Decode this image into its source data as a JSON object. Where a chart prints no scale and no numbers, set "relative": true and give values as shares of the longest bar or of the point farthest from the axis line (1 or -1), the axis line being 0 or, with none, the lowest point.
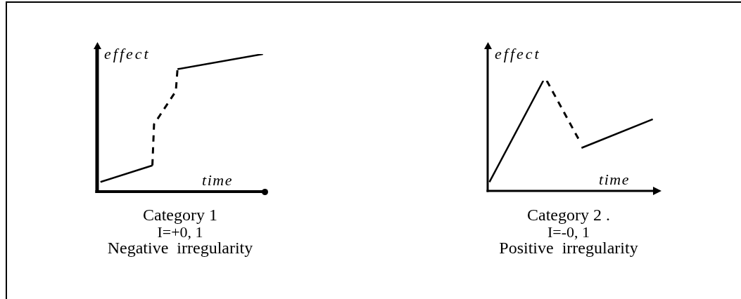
{
  "chart_data": [
    {
      "type": "line",
      "title": "Category 1",
      "subtitle": "I=+0, 1",
      "annotations": [
        "Negative irregularity"
      ],
      "xlabel": "time",
      "ylabel": "effect",
      "relative": true,
      "marker": "none",
      "categories": [
        null,
        null,
        null,
        null,
        null,
        null,
        null,
        null,
        null,
        null,
        null,
        null,
        null,
        null,
        null,
        null,
        null,
        null,
        null,
        null,
        null,
        null,
        null,
        null,
        null,
        null,
        null,
        null,
        null,
        null,
        null,
        null,
        null,
        null,
        null,
        null,
        null,
        null,
        null,
        null,
        null,
        null,
        null,
        null,
        null,
        null,
        null,
        null,
        null,
        null,
        null,
        null,
        null,
        null,
        null,
        null,
        null,
        null,
        null,
        null,
        null,
        null,
        null,
        null,
        null,
        null,
        null,
        null,
        null,
        null,
        null,
        null,
        null,
        null,
        null,
        null,
        null,
        null,
        null,
        null,
        null,
        null,
        null,
        null,
        null,
        null,
        null,
        null,
        null,
        null,
        null,
        null,
        null,
        null,
        null,
        null,
        null,
        null,
        null,
        null,
        null
      ],
      "series": [
        {
          "color": "#000000",
          "line_style": "solid",
          "values": [
            null,
            null,
            0.07,
            null,
            null,
            null,
            null,
            null,
            null,
            null,
            null,
            null,
            null,
            null,
            null,
            null,
            null,
            null,
            null,
            null,
            null,
            null,
            null,
            null,
            null,
            null,
            null,
            null,
            null,
            null,
            null,
            null,
            null,
            0.19,
            null,
            null,
            null,
            null,
            null,
            null,
            null,
            null,
            null,
            null,
            null,
            null,
            null,
            null,
            null,
            null,
            null,
            null,
            null,
            null,
            null,
            null,
            null,
            null,
            null,
            null,
            null,
            null,
            null,
            null,
            null,
            null,
            null,
            null,
            null,
            null,
            null,
            null,
            null,
            null,
            null,
            null,
            null,
            null,
            null,
            null,
            null,
            null,
            null,
            null,
            null,
            null,
            null,
            null,
            null,
            null,
            null,
            null,
            null,
            null,
            null,
            null,
            null,
            null,
            null,
            null,
            null
          ]
        },
        {
          "color": "#000000",
          "line_style": "dashed",
          "values": [
            null,
            null,
            null,
            null,
            null,
            null,
            null,
            null,
            null,
            null,
            null,
            null,
            null,
            null,
            null,
            null,
            null,
            null,
            null,
            null,
            null,
            null,
            null,
            null,
            null,
            null,
            null,
            null,
            null,
            null,
            null,
            null,
            null,
            0.19,
            0.49,
            null,
            null,
            null,
            null,
            null,
            null,
            null,
            null,
            null,
            null,
            null,
            null,
            0.73,
            0.89,
            null,
            null,
            null,
            null,
            null,
            null,
            null,
            null,
            null,
            null,
            null,
            null,
            null,
            null,
            null,
            null,
            null,
            null,
            null,
            null,
            null,
            null,
            null,
            null,
            null,
            null,
            null,
            null,
            null,
            null,
            null,
            null,
            null,
            null,
            null,
            null,
            null,
            null,
            null,
            null,
            null,
            null,
            null,
            null,
            null,
            null,
            null,
            null,
            null,
            null,
            null,
            null
          ]
        },
        {
          "color": "#000000",
          "line_style": "solid",
          "values": [
            null,
            null,
            null,
            null,
            null,
            null,
            null,
            null,
            null,
            null,
            null,
            null,
            null,
            null,
            null,
            null,
            null,
            null,
            null,
            null,
            null,
            null,
            null,
            null,
            null,
            null,
            null,
            null,
            null,
            null,
            null,
            null,
            null,
            null,
            null,
            null,
            null,
            null,
            null,
            null,
            null,
            null,
            null,
            null,
            null,
            null,
            null,
            null,
            0.89,
            null,
            null,
            null,
            null,
            null,
            null,
            null,
            null,
            null,
            null,
            null,
            null,
            null,
            null,
            null,
            null,
            null,
            null,
            null,
            null,
            null,
            null,
            null,
            null,
            null,
            null,
            null,
            null,
            null,
            null,
            null,
            null,
            null,
            null,
            null,
            null,
            null,
            null,
            null,
            null,
            null,
            null,
            null,
            null,
            null,
            null,
            null,
            null,
            null,
            null,
            1,
            null
          ]
        }
      ]
    },
    {
      "type": "line",
      "title": "Category 2 .",
      "subtitle": "I=-0, 1",
      "annotations": [
        "Positive irregularity"
      ],
      "xlabel": "time",
      "ylabel": "effect",
      "relative": true,
      "marker": "none",
      "categories": [
        null,
        null,
        null,
        null,
        null,
        null,
        null,
        null,
        null,
        null,
        null,
        null,
        null,
        null,
        null,
        null,
        null,
        null,
        null,
        null,
        null,
        null,
        null,
        null,
        null,
        null,
        null,
        null,
        null,
        null,
        null,
        null,
        null,
        null,
        null,
        null,
        null,
        null,
        null,
        null,
        null,
        null,
        null,
        null,
        null,
        null,
        null,
        null,
        null,
        null,
        null,
        null,
        null,
        null,
        null,
        null,
        null,
        null,
        null,
        null,
        null,
        null,
        null,
        null,
        null,
        null,
        null,
        null,
        null,
        null,
        null,
        null,
        null,
        null,
        null,
        null,
        null,
        null,
        null,
        null,
        null,
        null,
        null,
        null,
        null,
        null,
        null,
        null,
        null,
        null,
        null,
        null,
        null,
        null,
        null,
        null,
        null,
        null,
        null,
        null,
        null
      ],
      "series": [
        {
          "color": "#000000",
          "line_style": "solid",
          "values": [
            null,
            0.08,
            null,
            null,
            null,
            null,
            null,
            null,
            null,
            null,
            null,
            null,
            null,
            null,
            null,
            null,
            null,
            null,
            null,
            null,
            null,
            null,
            null,
            null,
            null,
            null,
            null,
            null,
            null,
            null,
            null,
            null,
            1,
            null,
            null,
            null,
            null,
            null,
            null,
            null,
            null,
            null,
            null,
            null,
            null,
            null,
            null,
            null,
            null,
            null,
            null,
            null,
            null,
            null,
            null,
            null,
            null,
            null,
            null,
            null,
            null,
            null,
            null,
            null,
            null,
            null,
            null,
            null,
            null,
            null,
            null,
            null,
            null,
            null,
            null,
            null,
            null,
            null,
            null,
            null,
            null,
            null,
            null,
            null,
            null,
            null,
            null,
            null,
            null,
            null,
            null,
            null,
            null,
            null,
            null,
            null,
            null,
            null,
            null,
            null,
            null
          ]
        },
        {
          "color": "#000000",
          "line_style": "dashed",
          "values": [
            null,
            null,
            null,
            null,
            null,
            null,
            null,
            null,
            null,
            null,
            null,
            null,
            null,
            null,
            null,
            null,
            null,
            null,
            null,
            null,
            null,
            null,
            null,
            null,
            null,
            null,
            null,
            null,
            null,
            null,
            null,
            null,
            null,
            null,
            1,
            null,
            null,
            null,
            null,
            null,
            null,
            null,
            null,
            null,
            null,
            null,
            null,
            null,
            null,
            null,
            null,
            null,
            null,
            0.45,
            null,
            null,
            null,
            null,
            null,
            null,
            null,
            null,
            null,
            null,
            null,
            null,
            null,
            null,
            null,
            null,
            null,
            null,
            null,
            null,
            null,
            null,
            null,
            null,
            null,
            null,
            null,
            null,
            null,
            null,
            null,
            null,
            null,
            null,
            null,
            null,
            null,
            null,
            null,
            null,
            null,
            null,
            null,
            null,
            null,
            null,
            null
          ]
        },
        {
          "color": "#000000",
          "line_style": "solid",
          "values": [
            null,
            null,
            null,
            null,
            null,
            null,
            null,
            null,
            null,
            null,
            null,
            null,
            null,
            null,
            null,
            null,
            null,
            null,
            null,
            null,
            null,
            null,
            null,
            null,
            null,
            null,
            null,
            null,
            null,
            null,
            null,
            null,
            null,
            null,
            null,
            null,
            null,
            null,
            null,
            null,
            null,
            null,
            null,
            null,
            null,
            null,
            null,
            null,
            null,
            null,
            null,
            null,
            null,
            null,
            0.39,
            null,
            null,
            null,
            null,
            null,
            null,
            null,
            null,
            null,
            null,
            null,
            null,
            null,
            null,
            null,
            null,
            null,
            null,
            null,
            null,
            null,
            null,
            null,
            null,
            null,
            null,
            null,
            null,
            null,
            null,
            null,
            null,
            null,
            null,
            null,
            null,
            null,
            null,
            null,
            null,
            0.65,
            null,
            null,
            null,
            null,
            null
          ]
        }
      ]
    }
  ]
}
